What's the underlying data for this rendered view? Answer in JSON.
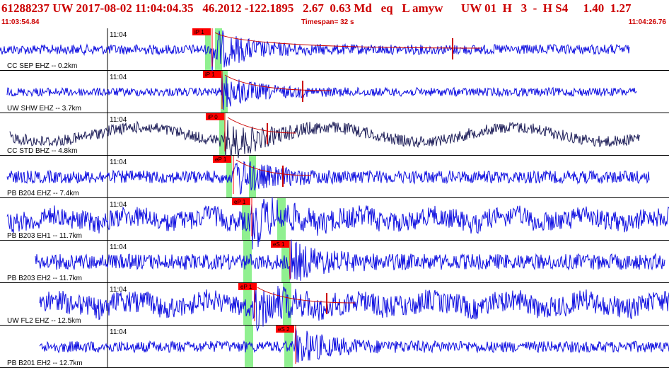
{
  "header": {
    "title": "61288237 UW 2017-08-02 11:04:04.35   46.2012 -122.1895   2.67  0.63 Md   eq   L amyw      UW 01  H   3  -  H S4     1.40  1.27",
    "time_start": "11:03:54.84",
    "timespan": "Timespan=  32 s",
    "time_end": "11:04:26.76"
  },
  "colors": {
    "trace": "#1010e0",
    "trace_dark": "#20205a",
    "pick_box": "#ff0000",
    "pick_window": "#90f090",
    "coda": "#cc0000"
  },
  "traces": [
    {
      "label": "CC SEP EHZ -- 0.2km",
      "tick": "11:04",
      "pick_label": "iP 1",
      "color": "trace"
    },
    {
      "label": "UW SHW EHZ -- 3.7km",
      "tick": "11:04",
      "pick_label": "iP 1",
      "color": "trace"
    },
    {
      "label": "CC STD BHZ -- 4.8km",
      "tick": "11:04",
      "pick_label": "iP 0",
      "color": "trace_dark"
    },
    {
      "label": "PB B204 EHZ -- 7.4km",
      "tick": "11:04",
      "pick_label": "eP 1",
      "color": "trace"
    },
    {
      "label": "PB B203 EH1 -- 11.7km",
      "tick": "11:04",
      "pick_label": "eP 1",
      "color": "trace"
    },
    {
      "label": "PB B203 EH2 -- 11.7km",
      "tick": "11:04",
      "pick_label": "eS 1",
      "color": "trace"
    },
    {
      "label": "UW FL2 EHZ -- 12.5km",
      "tick": "11:04",
      "pick_label": "eP 1",
      "color": "trace"
    },
    {
      "label": "PB B201 EH2 -- 12.7km",
      "tick": "11:04",
      "pick_label": "eS 2",
      "color": "trace"
    }
  ]
}
